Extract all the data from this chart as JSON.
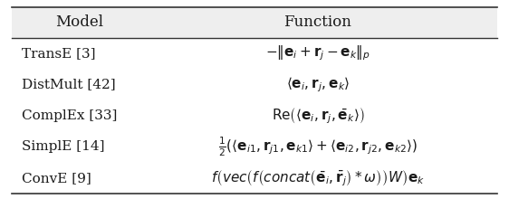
{
  "title_row": [
    "Model",
    "Function"
  ],
  "rows": [
    [
      "TransE [3]",
      "$-\\|\\mathbf{e}_i + \\mathbf{r}_j - \\mathbf{e}_k\\|_p$"
    ],
    [
      "DistMult [42]",
      "$\\langle \\mathbf{e}_i, \\mathbf{r}_j, \\mathbf{e}_k \\rangle$"
    ],
    [
      "ComplEx [33]",
      "$\\mathrm{Re}\\left(\\langle \\mathbf{e}_i, \\mathbf{r}_j, \\bar{\\mathbf{e}}_k \\rangle\\right)$"
    ],
    [
      "SimplE [14]",
      "$\\frac{1}{2}\\left(\\langle \\mathbf{e}_{i1}, \\mathbf{r}_{j1}, \\mathbf{e}_{k1} \\rangle + \\langle \\mathbf{e}_{i2}, \\mathbf{r}_{j2}, \\mathbf{e}_{k2} \\rangle\\right)$"
    ],
    [
      "ConvE [9]",
      "$f\\left(\\mathit{vec}\\left(f\\left(\\mathit{concat}\\left(\\bar{\\mathbf{e}}_i, \\bar{\\mathbf{r}}_j\\right) * \\omega\\right)\\right) W\\right) \\mathbf{e}_k$"
    ]
  ],
  "bg_color": "#f5f5f5",
  "header_bg": "#e8e8e8",
  "line_color": "#333333",
  "text_color": "#1a1a1a",
  "font_size": 11,
  "header_font_size": 12
}
